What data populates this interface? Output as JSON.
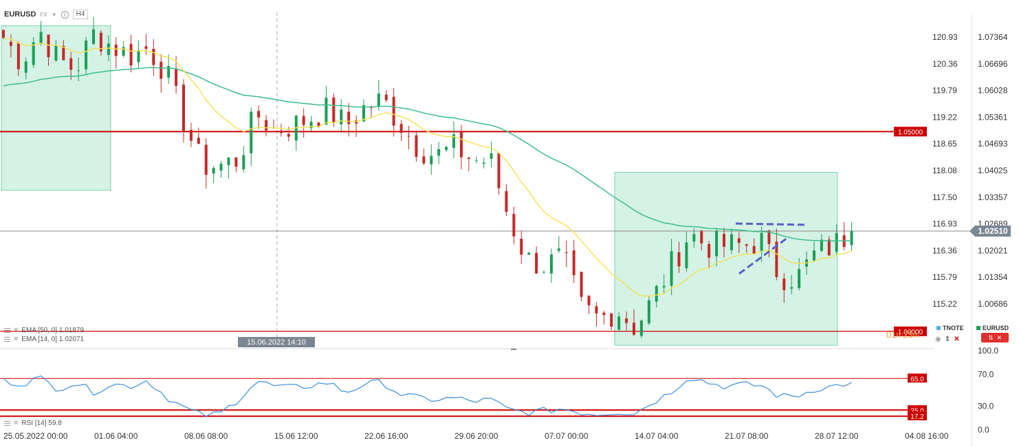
{
  "header": {
    "symbol": "EURUSD",
    "market_tag": "FX",
    "timeframe": "H4"
  },
  "legend": {
    "ema50": "EMA [50, 0] 1.01879",
    "ema14": "EMA [14, 0] 1.02071",
    "rsi": "RSI [14] 59.8",
    "right_series": [
      "TNOTE",
      "EURUSD"
    ]
  },
  "colors": {
    "bull": "#1b9e57",
    "bear": "#c62828",
    "ema14": "#f2e35a",
    "ema50": "#3dbd8c",
    "zone_fill": "#d4f2e5",
    "zone_border": "#7bd3b0",
    "level_red": "#cc0000",
    "rsi_line": "#3a8fdc",
    "pattern": "#5b5fc7",
    "tnote_marker": "#4fb3e8",
    "eurusd_marker": "#1b9e57",
    "countdown": "#e8a33a"
  },
  "countdown": {
    "hours_value": "01",
    "hours_unit": "h",
    "minutes_value": "23",
    "minutes_unit": "m"
  },
  "crosshair_label": "15.06.2022 14:10",
  "chart_data": [
    {
      "type": "candlestick",
      "symbol": "EURUSD",
      "timeframe": "H4",
      "ylim": [
        0.996,
        1.0795
      ],
      "y_ticks_right": [
        "1.07364",
        "1.06696",
        "1.06028",
        "1.05361",
        "1.04693",
        "1.04025",
        "1.03357",
        "1.02689",
        "1.02021",
        "1.01354",
        "1.00686"
      ],
      "y_ticks_left_secondary": [
        "120.93",
        "120.36",
        "119.79",
        "119.22",
        "118.65",
        "118.08",
        "117.50",
        "116.93",
        "116.36",
        "115.79",
        "115.22"
      ],
      "x_ticks": [
        "25.05.2022 00:00",
        "01.06 04:00",
        "08.06 08:00",
        "15.06 12:00",
        "22.06 16:00",
        "29.06 20:00",
        "07.07 00:00",
        "14.07 04:00",
        "21.07 08:00",
        "28.07 12:00",
        "04.08 16:00"
      ],
      "last_price": "1.02510",
      "levels": [
        {
          "value": 1.05,
          "label": "1.05000"
        },
        {
          "value": 1.0,
          "label": "1.00000"
        }
      ],
      "close_anchors": [
        {
          "date": "25.05.2022 00:00",
          "close": 1.0735
        },
        {
          "date": "27.05.2022 00:00",
          "close": 1.0675
        },
        {
          "date": "31.05.2022 00:00",
          "close": 1.0755
        },
        {
          "date": "01.06 04:00",
          "close": 1.068
        },
        {
          "date": "02.06 00:00",
          "close": 1.0655
        },
        {
          "date": "03.06 00:00",
          "close": 1.0745
        },
        {
          "date": "06.06 00:00",
          "close": 1.0715
        },
        {
          "date": "07.06 00:00",
          "close": 1.069
        },
        {
          "date": "08.06 08:00",
          "close": 1.071
        },
        {
          "date": "09.06 00:00",
          "close": 1.065
        },
        {
          "date": "10.06 00:00",
          "close": 1.0525
        },
        {
          "date": "13.06 00:00",
          "close": 1.0415
        },
        {
          "date": "14.06 00:00",
          "close": 1.0415
        },
        {
          "date": "15.06 12:00",
          "close": 1.043
        },
        {
          "date": "16.06 00:00",
          "close": 1.0545
        },
        {
          "date": "17.06 00:00",
          "close": 1.0505
        },
        {
          "date": "20.06 00:00",
          "close": 1.0515
        },
        {
          "date": "21.06 00:00",
          "close": 1.0535
        },
        {
          "date": "22.06 16:00",
          "close": 1.0555
        },
        {
          "date": "23.06 00:00",
          "close": 1.0515
        },
        {
          "date": "24.06 00:00",
          "close": 1.056
        },
        {
          "date": "27.06 00:00",
          "close": 1.058
        },
        {
          "date": "28.06 00:00",
          "close": 1.052
        },
        {
          "date": "29.06 00:00",
          "close": 1.046
        },
        {
          "date": "29.06 20:00",
          "close": 1.044
        },
        {
          "date": "30.06 00:00",
          "close": 1.046
        },
        {
          "date": "01.07 00:00",
          "close": 1.043
        },
        {
          "date": "04.07 00:00",
          "close": 1.0425
        },
        {
          "date": "05.07 00:00",
          "close": 1.0285
        },
        {
          "date": "06.07 00:00",
          "close": 1.018
        },
        {
          "date": "07.07 00:00",
          "close": 1.0165
        },
        {
          "date": "08.07 00:00",
          "close": 1.0185
        },
        {
          "date": "11.07 00:00",
          "close": 1.006
        },
        {
          "date": "12.07 00:00",
          "close": 1.003
        },
        {
          "date": "13.07 00:00",
          "close": 1.0055
        },
        {
          "date": "14.07 04:00",
          "close": 1.001
        },
        {
          "date": "15.07 00:00",
          "close": 1.008
        },
        {
          "date": "18.07 00:00",
          "close": 1.0165
        },
        {
          "date": "19.07 00:00",
          "close": 1.0245
        },
        {
          "date": "20.07 00:00",
          "close": 1.0215
        },
        {
          "date": "21.07 08:00",
          "close": 1.0215
        },
        {
          "date": "22.07 00:00",
          "close": 1.0215
        },
        {
          "date": "25.07 00:00",
          "close": 1.0225
        },
        {
          "date": "26.07 00:00",
          "close": 1.014
        },
        {
          "date": "27.07 00:00",
          "close": 1.0135
        },
        {
          "date": "28.07 00:00",
          "close": 1.0195
        },
        {
          "date": "28.07 12:00",
          "close": 1.0215
        },
        {
          "date": "29.07 00:00",
          "close": 1.0251
        }
      ]
    },
    {
      "type": "line",
      "name": "RSI [14]",
      "ylim": [
        0,
        100
      ],
      "y_ticks": [
        "100.0",
        "70.0",
        "30.0",
        "0.0"
      ],
      "levels": [
        {
          "value": 65.0,
          "label": "65.0"
        },
        {
          "value": 25.0,
          "label": "25.0"
        },
        {
          "value": 17.2,
          "label": "17.2"
        }
      ],
      "last_value": 59.8,
      "anchors": [
        62,
        58,
        66,
        52,
        60,
        48,
        58,
        55,
        63,
        42,
        28,
        18,
        20,
        38,
        62,
        55,
        53,
        56,
        60,
        47,
        58,
        60,
        45,
        40,
        38,
        40,
        36,
        38,
        25,
        22,
        24,
        27,
        22,
        20,
        23,
        21,
        35,
        48,
        68,
        60,
        55,
        57,
        56,
        42,
        43,
        52,
        55,
        59.8
      ]
    }
  ]
}
